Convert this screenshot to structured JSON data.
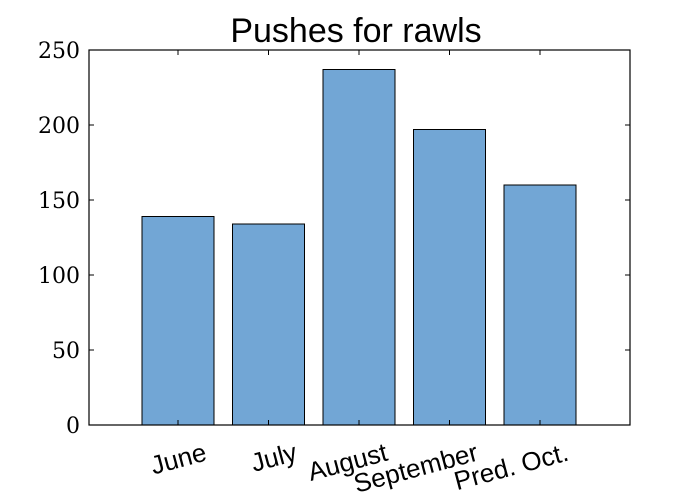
{
  "chart_data": {
    "type": "bar",
    "title": "Pushes for rawls",
    "categories": [
      "June",
      "July",
      "August",
      "September",
      "Pred. Oct."
    ],
    "values": [
      139,
      134,
      237,
      197,
      160
    ],
    "ylim": [
      0,
      250
    ],
    "yticks": [
      0,
      50,
      100,
      150,
      200,
      250
    ],
    "xlabel": "",
    "ylabel": "",
    "bar_color": "#72a6d5",
    "grid": false,
    "legend": "none"
  }
}
